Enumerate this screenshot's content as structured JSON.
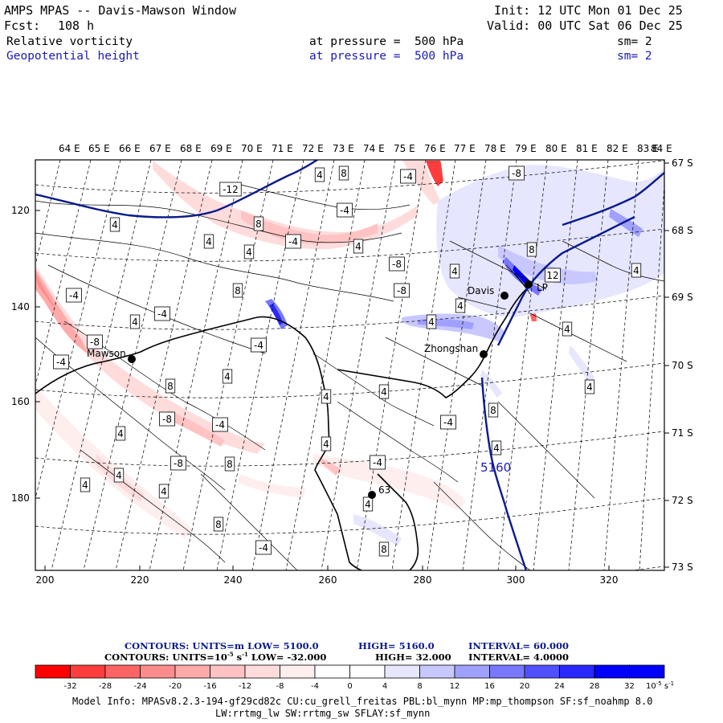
{
  "header": {
    "title": "AMPS MPAS -- Davis-Mawson Window",
    "fcst_label": "Fcst:",
    "fcst_value": "108 h",
    "init": "Init: 12 UTC Mon 01 Dec 25",
    "valid": "Valid: 00 UTC Sat 06 Dec 25",
    "field1": {
      "name": "Relative vorticity",
      "pressure": "at pressure =  500 hPa",
      "smooth": "sm= 2"
    },
    "field2": {
      "name": "Geopotential height",
      "pressure": "at pressure =  500 hPa",
      "smooth": "sm= 2"
    }
  },
  "map": {
    "top_lon_labels": [
      "64 E",
      "65 E",
      "66 E",
      "67 E",
      "68 E",
      "69 E",
      "70 E",
      "71 E",
      "72 E",
      "73 E",
      "74 E",
      "75 E",
      "76 E",
      "77 E",
      "78 E",
      "79 E",
      "80 E",
      "81 E",
      "82 E",
      "83 E",
      "84 E"
    ],
    "right_lat_labels": [
      "67 S",
      "68 S",
      "69 S",
      "70 S",
      "71 S",
      "72 S",
      "73 S"
    ],
    "left_y_labels": [
      "120",
      "140",
      "160",
      "180"
    ],
    "bottom_x_labels": [
      "200",
      "220",
      "240",
      "260",
      "280",
      "300",
      "320"
    ],
    "stations": [
      "Mawson",
      "Davis",
      "Zhongshan",
      "LP",
      "63"
    ],
    "height_contour_label": "5160",
    "contour_labels": [
      "4",
      "8",
      "-4",
      "-8",
      "-12",
      "-4",
      "4",
      "8",
      "4",
      "-4",
      "4",
      "4",
      "-8",
      "4",
      "8",
      "-8",
      "4",
      "-4",
      "8",
      "-4",
      "4",
      "4",
      "4",
      "-8",
      "-4",
      "-4",
      "4",
      "8",
      "4",
      "4",
      "-4",
      "-8",
      "4",
      "8",
      "-4",
      "4",
      "-8",
      "8",
      "4",
      "4",
      "-4",
      "4",
      "4",
      "12",
      "4",
      "4",
      "4",
      "8",
      "8",
      "-4"
    ]
  },
  "legend": {
    "line1": {
      "prefix": "CONTOURS:  UNITS=m  LOW=  5100.0",
      "high": "HIGH=  5160.0",
      "interval": "INTERVAL=   60.000"
    },
    "line2": {
      "prefix": "CONTOURS:  UNITS=10",
      "exp": "-5",
      "unit_rest": " s",
      "exp2": "-1",
      "low": "  LOW=  -32.000",
      "high": "HIGH=  32.000",
      "interval": "INTERVAL=   4.0000"
    },
    "colorbar_labels": [
      "-32",
      "-28",
      "-24",
      "-20",
      "-16",
      "-12",
      "-8",
      "-4",
      "0",
      "4",
      "8",
      "12",
      "16",
      "20",
      "24",
      "28",
      "32"
    ],
    "colorbar_unit": "10",
    "colorbar_unit_exp": "-5",
    "colorbar_unit_s": " s",
    "colorbar_unit_exp2": "-1",
    "colorbar_colors": [
      "#ff0000",
      "#ff3c3c",
      "#ff6464",
      "#ff8c8c",
      "#ffaaaa",
      "#ffc3c3",
      "#ffdcdc",
      "#ffeeee",
      "#ffffff",
      "#ffffff",
      "#e6e6ff",
      "#c8c8ff",
      "#a0a0ff",
      "#7878ff",
      "#5050ff",
      "#2828ff",
      "#0000ff",
      "#0000ff"
    ]
  },
  "footer": {
    "line1": "Model Info: MPASv8.2.3-194-gf29cd82c CU:cu_grell_freitas PBL:bl_mynn MP:mp_thompson SF:sf_noahmp 8.0",
    "line2": "LW:rrtmg_lw SW:rrtmg_sw SFLAY:sf_mynn"
  }
}
